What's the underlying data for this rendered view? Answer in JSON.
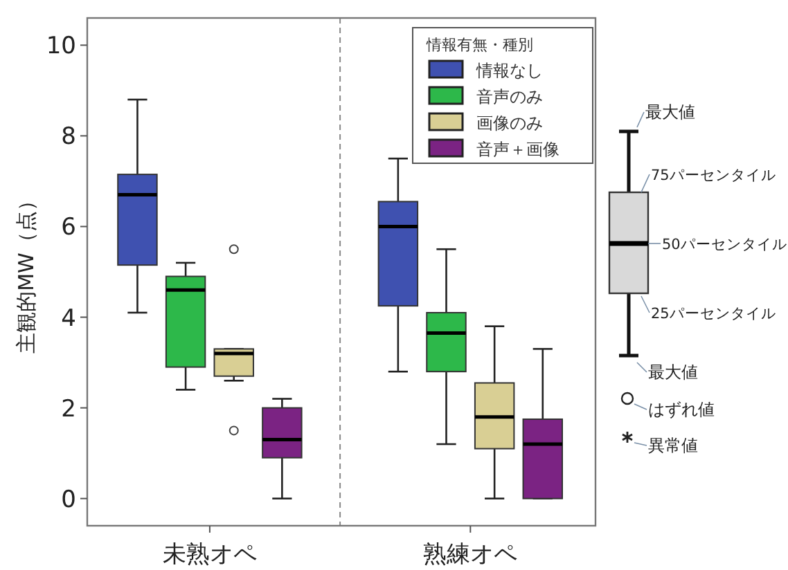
{
  "chart_data": {
    "type": "box",
    "ylabel": "主観的MW（点）",
    "legend_title": "情報有無・種別",
    "legend": "top right",
    "categories": [
      "未熟オペ",
      "熟練オペ"
    ],
    "series": [
      {
        "name": "情報なし",
        "color": "#3f51b0",
        "boxes": [
          {
            "low": 4.1,
            "q1": 5.15,
            "median": 6.7,
            "q3": 7.15,
            "high": 8.8
          },
          {
            "low": 2.8,
            "q1": 4.25,
            "median": 6.0,
            "q3": 6.55,
            "high": 7.5
          }
        ]
      },
      {
        "name": "音声のみ",
        "color": "#2db84a",
        "boxes": [
          {
            "low": 2.4,
            "q1": 2.9,
            "median": 4.6,
            "q3": 4.9,
            "high": 5.2
          },
          {
            "low": 1.2,
            "q1": 2.8,
            "median": 3.65,
            "q3": 4.1,
            "high": 5.5
          }
        ]
      },
      {
        "name": "画像のみ",
        "color": "#d9cf94",
        "boxes": [
          {
            "low": 2.6,
            "q1": 2.7,
            "median": 3.2,
            "q3": 3.3,
            "high": 3.3,
            "outliers": [
              1.5,
              5.5
            ]
          },
          {
            "low": 0,
            "q1": 1.1,
            "median": 1.8,
            "q3": 2.55,
            "high": 3.8
          }
        ]
      },
      {
        "name": "音声＋画像",
        "color": "#7b2383",
        "boxes": [
          {
            "low": 0,
            "q1": 0.9,
            "median": 1.3,
            "q3": 2.0,
            "high": 2.2
          },
          {
            "low": 0,
            "q1": 0,
            "median": 1.2,
            "q3": 1.75,
            "high": 3.3
          }
        ]
      }
    ],
    "ylim": [
      -0.6,
      10.6
    ],
    "yticks": [
      0,
      2,
      4,
      6,
      8,
      10
    ],
    "annotations": [
      "最大値",
      "75パーセンタイル",
      "50パーセンタイル",
      "25パーセンタイル",
      "最大値",
      "はずれ値",
      "異常値"
    ]
  }
}
